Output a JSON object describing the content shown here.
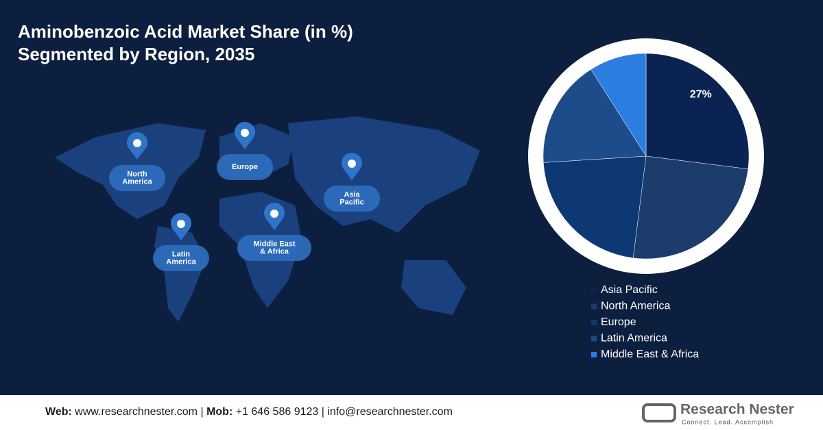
{
  "chart_data": {
    "type": "pie",
    "title": "Aminobenzoic Acid Market Share (in %)",
    "subtitle": "Segmented by Region, 2035",
    "categories": [
      "Asia Pacific",
      "North America",
      "Europe",
      "Latin America",
      "Middle East & Africa"
    ],
    "values": [
      27,
      25,
      22,
      17,
      9
    ],
    "value_labels": [
      "27%",
      null,
      null,
      null,
      null
    ],
    "colors": [
      "#0b2353",
      "#1c3d6b",
      "#0e3873",
      "#1e4c8a",
      "#2b7ddf"
    ]
  },
  "map": {
    "pins": [
      {
        "lines": [
          "North",
          "America"
        ]
      },
      {
        "lines": [
          "Europe"
        ]
      },
      {
        "lines": [
          "Asia",
          "Pacific"
        ]
      },
      {
        "lines": [
          "Middle East",
          "& Africa"
        ]
      },
      {
        "lines": [
          "Latin",
          "America"
        ]
      }
    ]
  },
  "footer": {
    "web_label": "Web:",
    "web": "www.researchnester.com",
    "separator": "|",
    "mob_label": "Mob:",
    "mob": "+1 646 586 9123",
    "email": "info@researchnester.com",
    "brand": "Research Nester",
    "tagline": "Connect. Lead. Accomplish"
  }
}
